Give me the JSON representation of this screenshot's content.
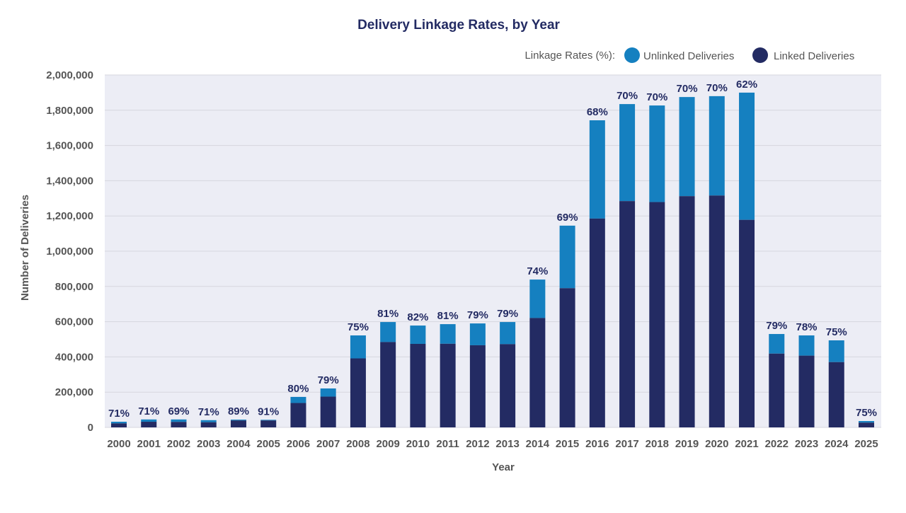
{
  "chart_data": {
    "type": "bar",
    "stacked": true,
    "title": "Delivery Linkage Rates, by Year",
    "xlabel": "Year",
    "ylabel": "Number of Deliveries",
    "ylim": [
      0,
      2000000
    ],
    "yticks": [
      0,
      200000,
      400000,
      600000,
      800000,
      1000000,
      1200000,
      1400000,
      1600000,
      1800000,
      2000000
    ],
    "ytick_labels": [
      "0",
      "200,000",
      "400,000",
      "600,000",
      "800,000",
      "1,000,000",
      "1,200,000",
      "1,400,000",
      "1,600,000",
      "1,800,000",
      "2,000,000"
    ],
    "grid": true,
    "legend": {
      "title": "Linkage Rates (%):",
      "placement": "top-right",
      "entries": [
        "Unlinked Deliveries",
        "Linked Deliveries"
      ]
    },
    "categories": [
      "2000",
      "2001",
      "2002",
      "2003",
      "2004",
      "2005",
      "2006",
      "2007",
      "2008",
      "2009",
      "2010",
      "2011",
      "2012",
      "2013",
      "2014",
      "2015",
      "2016",
      "2017",
      "2018",
      "2019",
      "2020",
      "2021",
      "2022",
      "2023",
      "2024",
      "2025"
    ],
    "totals": [
      32000,
      45000,
      45000,
      41000,
      44000,
      43000,
      173000,
      221000,
      522000,
      598000,
      578000,
      586000,
      590000,
      598000,
      839000,
      1145000,
      1743000,
      1835000,
      1827000,
      1875000,
      1880000,
      1900000,
      530000,
      522000,
      494000,
      36000
    ],
    "linkage_rates": [
      71,
      71,
      69,
      71,
      89,
      91,
      80,
      79,
      75,
      81,
      82,
      81,
      79,
      79,
      74,
      69,
      68,
      70,
      70,
      70,
      70,
      62,
      79,
      78,
      75,
      75
    ],
    "rate_labels": [
      "71%",
      "71%",
      "69%",
      "71%",
      "89%",
      "91%",
      "80%",
      "79%",
      "75%",
      "81%",
      "82%",
      "81%",
      "79%",
      "79%",
      "74%",
      "69%",
      "68%",
      "70%",
      "70%",
      "70%",
      "70%",
      "62%",
      "79%",
      "78%",
      "75%",
      "75%"
    ],
    "series": [
      {
        "name": "Linked Deliveries",
        "color": "#232B63"
      },
      {
        "name": "Unlinked Deliveries",
        "color": "#1580C0"
      }
    ]
  },
  "colors": {
    "title": "#232B63",
    "plot_background": "#ECEDF5",
    "axis_text": "#555555"
  }
}
